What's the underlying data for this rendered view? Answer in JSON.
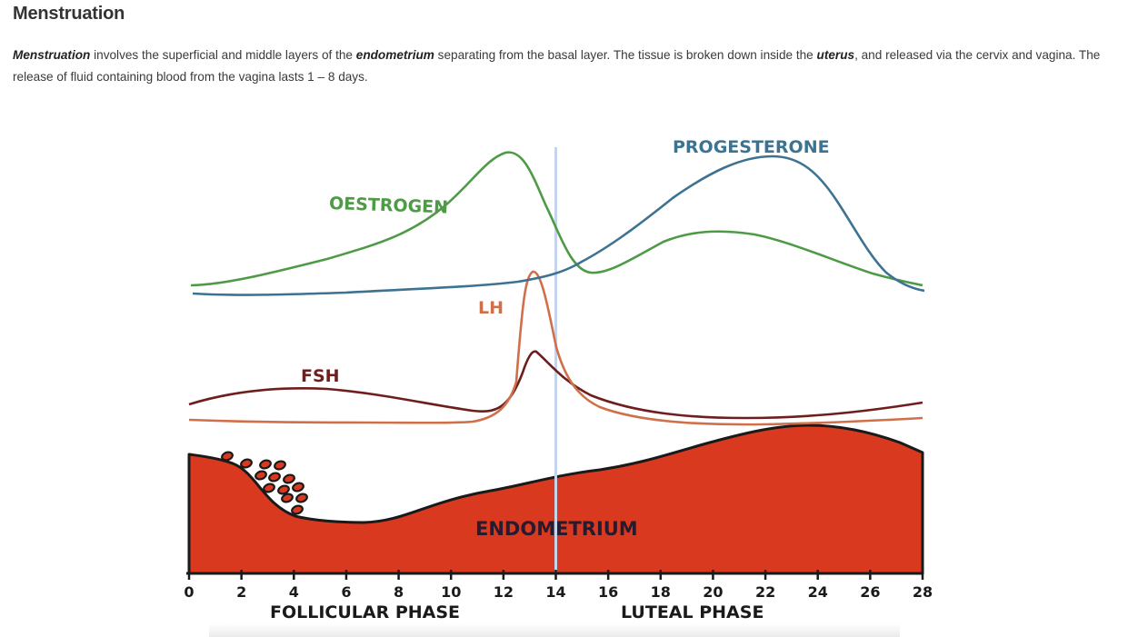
{
  "article": {
    "heading": "Menstruation",
    "paragraph": {
      "term_menstruation": "Menstruation",
      "text_1": " involves the superficial and middle layers of the ",
      "term_endometrium": "endometrium",
      "text_2": " separating from the basal layer. The tissue is broken down inside the ",
      "term_uterus": "uterus",
      "text_3": ", and released via the cervix and vagina. The release of fluid containing blood from the vagina lasts 1 – 8 days."
    }
  },
  "diagram": {
    "labels": {
      "oestrogen": "OESTROGEN",
      "progesterone": "PROGESTERONE",
      "lh": "LH",
      "fsh": "FSH",
      "endometrium": "ENDOMETRIUM",
      "follicular_phase": "FOLLICULAR PHASE",
      "luteal_phase": "LUTEAL PHASE"
    },
    "x_axis": {
      "min_day": 0,
      "max_day": 28,
      "ovulation_day": 14,
      "ticks": [
        "0",
        "2",
        "4",
        "6",
        "8",
        "10",
        "12",
        "14",
        "16",
        "18",
        "20",
        "22",
        "24",
        "26",
        "28"
      ]
    },
    "colors": {
      "oestrogen": "#4e9a46",
      "progesterone": "#3d7391",
      "lh": "#d0704a",
      "fsh": "#6e1e1c",
      "endometrium_fill": "#d93a1f",
      "endometrium_stroke": "#1a1a1a",
      "ovulation_line": "#c3d4ec",
      "axis": "#1a1a1a"
    }
  }
}
